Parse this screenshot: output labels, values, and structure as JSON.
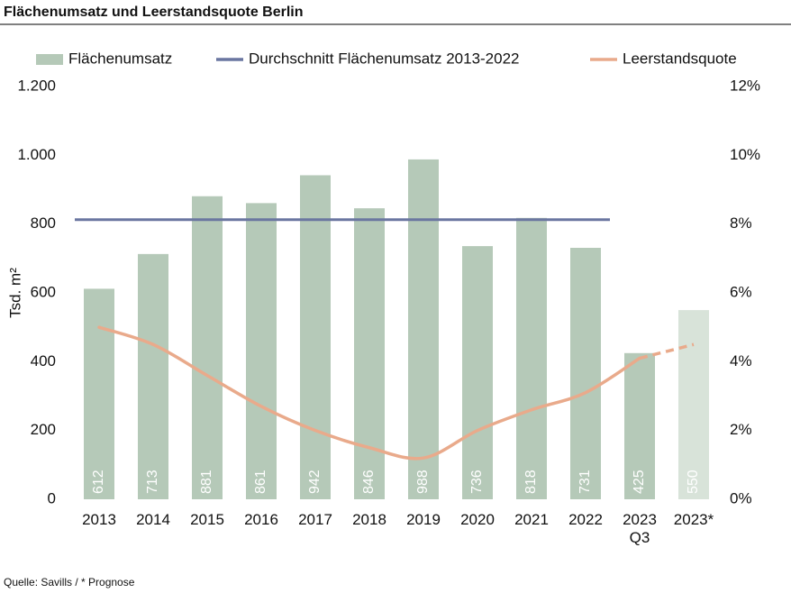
{
  "chart_data": {
    "type": "bar_line",
    "title": "Flächenumsatz und Leerstandsquote Berlin",
    "source": "Quelle: Savills / * Prognose",
    "ylabel": "Tsd. m²",
    "categories": [
      "2013",
      "2014",
      "2015",
      "2016",
      "2017",
      "2018",
      "2019",
      "2020",
      "2021",
      "2022",
      "2023\nQ3",
      "2023*"
    ],
    "series": [
      {
        "name": "Flächenumsatz",
        "type": "bar",
        "color": "#b5c9b8",
        "colors": [
          "#b5c9b8",
          "#b5c9b8",
          "#b5c9b8",
          "#b5c9b8",
          "#b5c9b8",
          "#b5c9b8",
          "#b5c9b8",
          "#b5c9b8",
          "#b5c9b8",
          "#b5c9b8",
          "#b5c9b8",
          "#d8e3d9"
        ],
        "values": [
          612,
          713,
          881,
          861,
          942,
          846,
          988,
          736,
          818,
          731,
          425,
          550
        ]
      },
      {
        "name": "Durchschnitt Flächenumsatz 2013-2022",
        "type": "hline",
        "color": "#6a76a0",
        "value": 813,
        "span": [
          0,
          9
        ]
      },
      {
        "name": "Leerstandsquote",
        "type": "line",
        "axis": "y2",
        "color": "#e9aa8b",
        "dashed_from": 10,
        "values": [
          5.0,
          4.5,
          3.6,
          2.7,
          2.0,
          1.5,
          1.2,
          2.0,
          2.6,
          3.1,
          4.1,
          4.5
        ]
      }
    ],
    "ylim": [
      0,
      1200
    ],
    "yticks": [
      0,
      200,
      400,
      600,
      800,
      {
        "value": 1000,
        "label": "1.000"
      },
      {
        "value": 1200,
        "label": "1.200"
      }
    ],
    "y2lim": [
      0,
      12
    ],
    "y2ticks": [
      {
        "value": 0,
        "label": "0%"
      },
      {
        "value": 2,
        "label": "2%"
      },
      {
        "value": 4,
        "label": "4%"
      },
      {
        "value": 6,
        "label": "6%"
      },
      {
        "value": 8,
        "label": "8%"
      },
      {
        "value": 10,
        "label": "10%"
      },
      {
        "value": 12,
        "label": "12%"
      }
    ],
    "legend": "top",
    "grid": false
  }
}
